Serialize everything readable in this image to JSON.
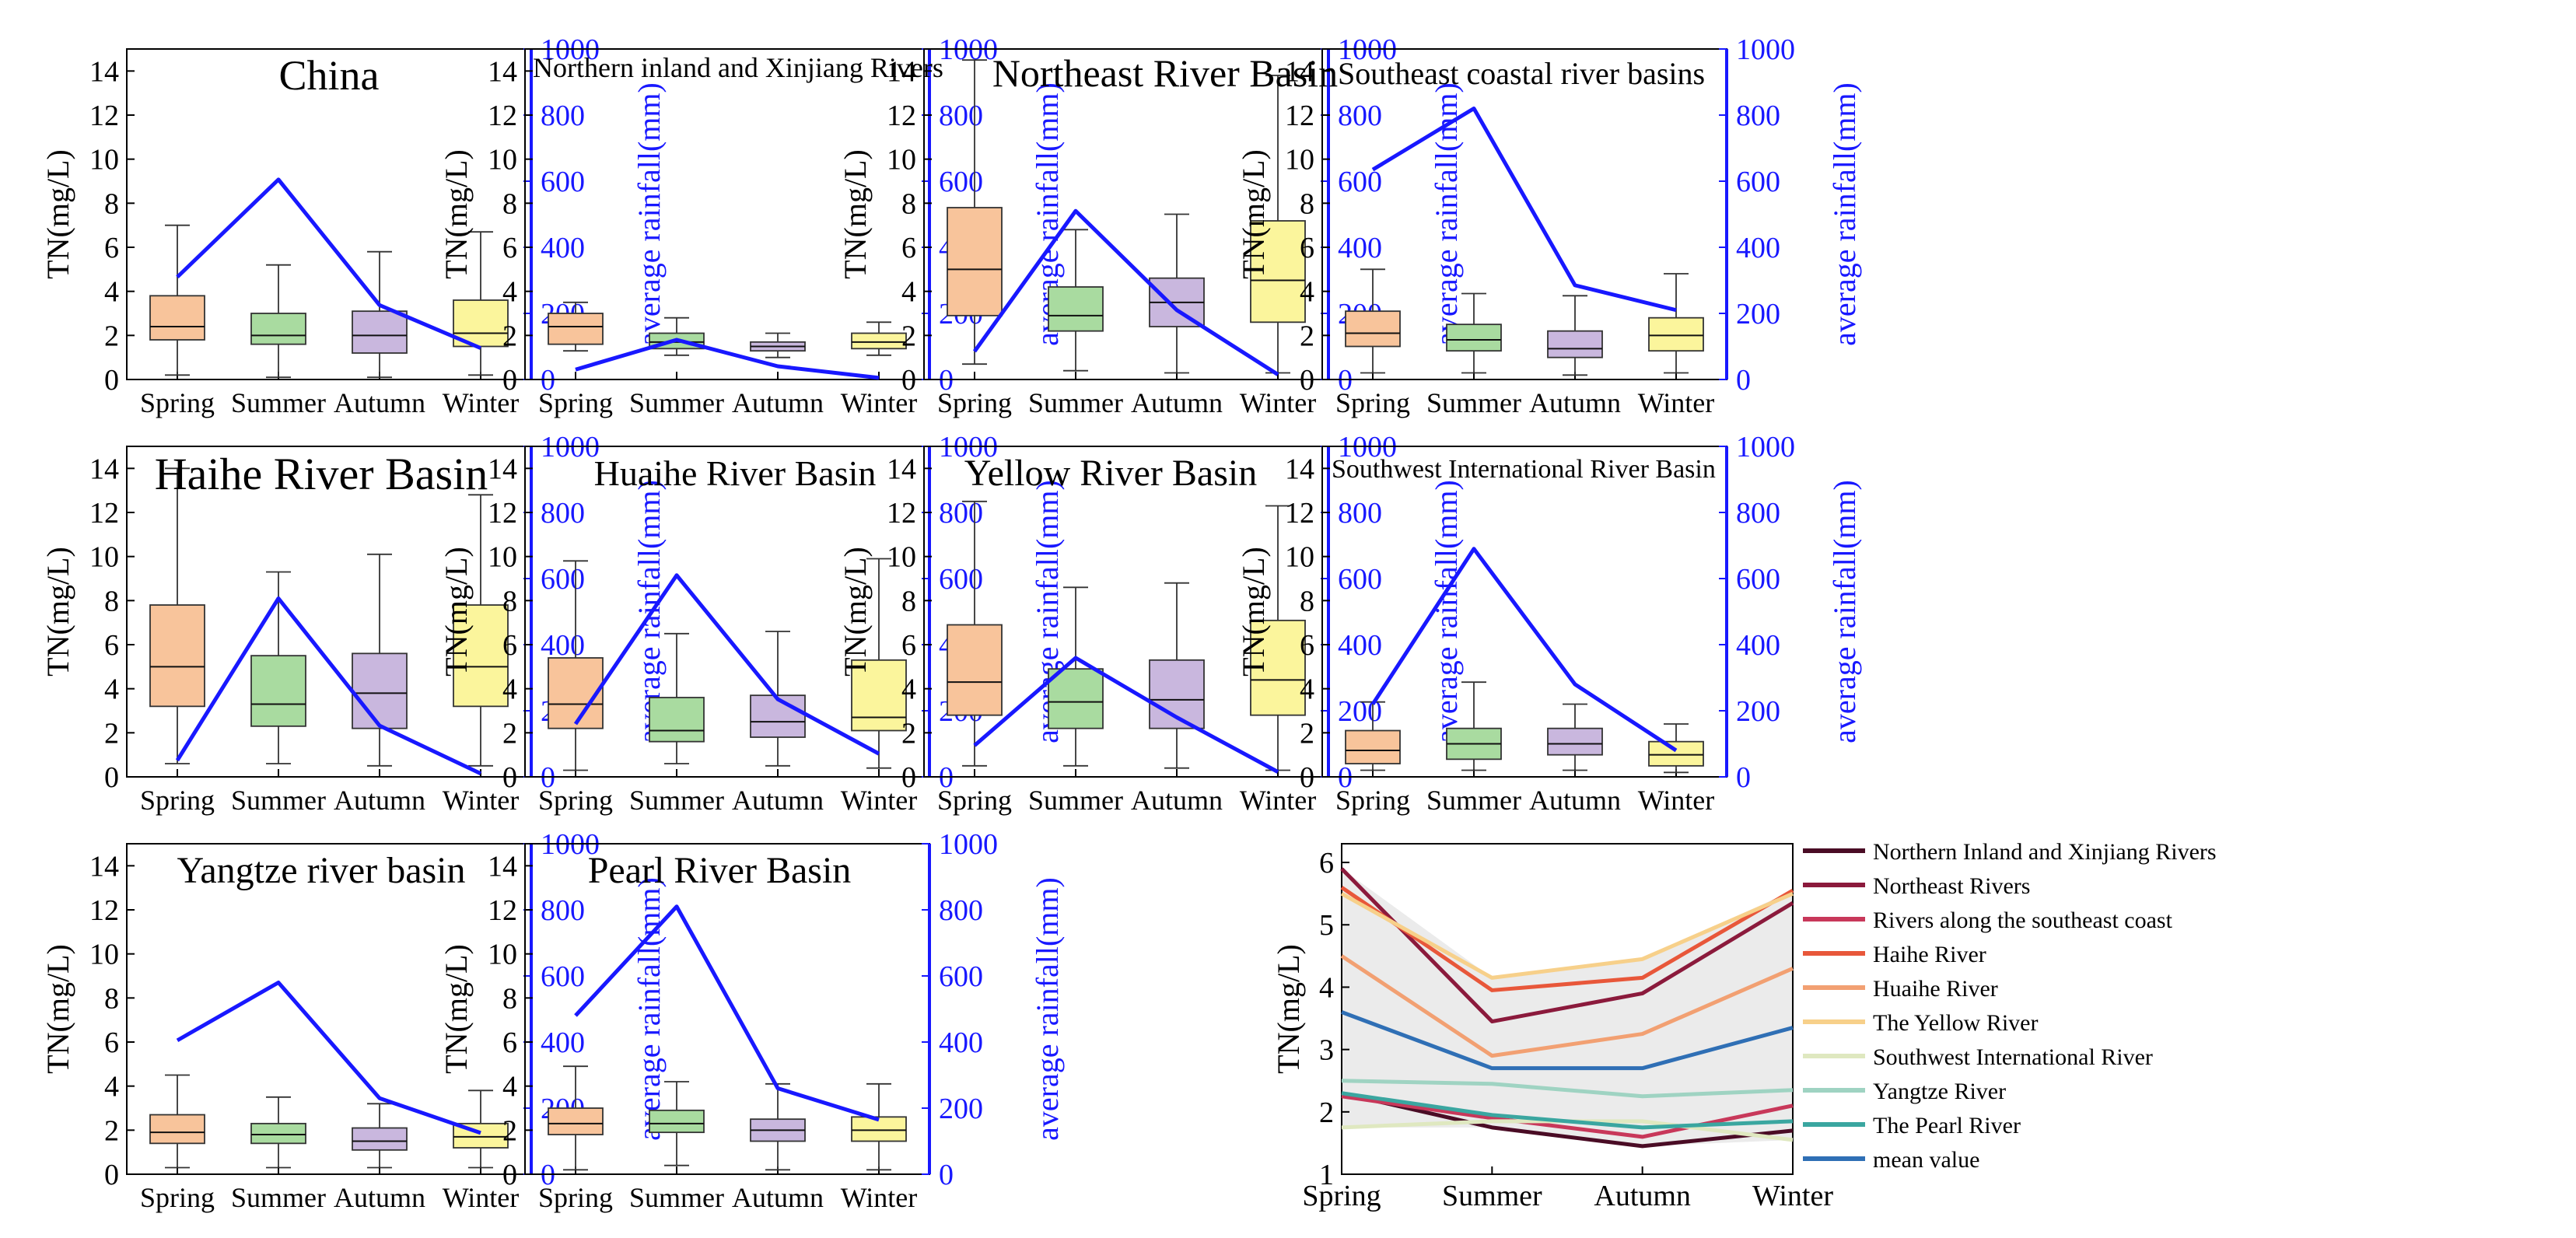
{
  "figure": {
    "seasons": [
      "Spring",
      "Summer",
      "Autumn",
      "Winter"
    ],
    "tn_axis_label": "TN(mg/L)",
    "rain_axis_label": "average rainfall(mm)",
    "colors": {
      "box_spring": "#f8c49b",
      "box_summer": "#a9dba0",
      "box_autumn": "#c9b7de",
      "box_winter": "#fbf59c",
      "rain_line": "#1818ff",
      "rain_axis": "#1818ff",
      "band_fill": "#e4e4e4"
    }
  },
  "chart_data": [
    {
      "type": "box+line",
      "title": "China",
      "categories": [
        "Spring",
        "Summer",
        "Autumn",
        "Winter"
      ],
      "y_left": {
        "label": "TN(mg/L)",
        "range": [
          0,
          15
        ],
        "ticks": [
          0,
          2,
          4,
          6,
          8,
          10,
          12,
          14
        ]
      },
      "y_right": {
        "label": "average rainfall(mm)",
        "range": [
          0,
          1000
        ],
        "ticks": [
          0,
          200,
          400,
          600,
          800,
          1000
        ]
      },
      "boxes": [
        {
          "season": "Spring",
          "min": 0.2,
          "q1": 1.8,
          "median": 2.4,
          "q3": 3.8,
          "max": 7.0
        },
        {
          "season": "Summer",
          "min": 0.1,
          "q1": 1.6,
          "median": 2.0,
          "q3": 3.0,
          "max": 5.2
        },
        {
          "season": "Autumn",
          "min": 0.1,
          "q1": 1.2,
          "median": 2.0,
          "q3": 3.1,
          "max": 5.8
        },
        {
          "season": "Winter",
          "min": 0.2,
          "q1": 1.5,
          "median": 2.1,
          "q3": 3.6,
          "max": 6.7
        }
      ],
      "rainfall": [
        310,
        605,
        225,
        95
      ]
    },
    {
      "type": "box+line",
      "title": "Northern inland and Xinjiang Rivers",
      "categories": [
        "Spring",
        "Summer",
        "Autumn",
        "Winter"
      ],
      "y_left": {
        "label": "TN(mg/L)",
        "range": [
          0,
          15
        ],
        "ticks": [
          0,
          2,
          4,
          6,
          8,
          10,
          12,
          14
        ]
      },
      "y_right": {
        "label": "average rainfall(mm)",
        "range": [
          0,
          1000
        ],
        "ticks": [
          0,
          200,
          400,
          600,
          800,
          1000
        ]
      },
      "boxes": [
        {
          "season": "Spring",
          "min": 1.3,
          "q1": 1.6,
          "median": 2.4,
          "q3": 3.0,
          "max": 3.5
        },
        {
          "season": "Summer",
          "min": 1.1,
          "q1": 1.4,
          "median": 1.7,
          "q3": 2.1,
          "max": 2.8
        },
        {
          "season": "Autumn",
          "min": 1.0,
          "q1": 1.3,
          "median": 1.5,
          "q3": 1.7,
          "max": 2.1
        },
        {
          "season": "Winter",
          "min": 1.1,
          "q1": 1.4,
          "median": 1.7,
          "q3": 2.1,
          "max": 2.6
        }
      ],
      "rainfall": [
        30,
        120,
        40,
        5
      ]
    },
    {
      "type": "box+line",
      "title": "Northeast River Basin",
      "categories": [
        "Spring",
        "Summer",
        "Autumn",
        "Winter"
      ],
      "y_left": {
        "label": "TN(mg/L)",
        "range": [
          0,
          15
        ],
        "ticks": [
          0,
          2,
          4,
          6,
          8,
          10,
          12,
          14
        ]
      },
      "y_right": {
        "label": "average rainfall(mm)",
        "range": [
          0,
          1000
        ],
        "ticks": [
          0,
          200,
          400,
          600,
          800,
          1000
        ]
      },
      "boxes": [
        {
          "season": "Spring",
          "min": 0.7,
          "q1": 2.9,
          "median": 5.0,
          "q3": 7.8,
          "max": 14.5
        },
        {
          "season": "Summer",
          "min": 0.4,
          "q1": 2.2,
          "median": 2.9,
          "q3": 4.2,
          "max": 6.8
        },
        {
          "season": "Autumn",
          "min": 0.3,
          "q1": 2.4,
          "median": 3.5,
          "q3": 4.6,
          "max": 7.5
        },
        {
          "season": "Winter",
          "min": 0.3,
          "q1": 2.6,
          "median": 4.5,
          "q3": 7.2,
          "max": 13.8
        }
      ],
      "rainfall": [
        85,
        510,
        210,
        15
      ]
    },
    {
      "type": "box+line",
      "title": "Southeast coastal river basins",
      "categories": [
        "Spring",
        "Summer",
        "Autumn",
        "Winter"
      ],
      "y_left": {
        "label": "TN(mg/L)",
        "range": [
          0,
          15
        ],
        "ticks": [
          0,
          2,
          4,
          6,
          8,
          10,
          12,
          14
        ]
      },
      "y_right": {
        "label": "average rainfall(mm)",
        "range": [
          0,
          1000
        ],
        "ticks": [
          0,
          200,
          400,
          600,
          800,
          1000
        ]
      },
      "boxes": [
        {
          "season": "Spring",
          "min": 0.3,
          "q1": 1.5,
          "median": 2.1,
          "q3": 3.1,
          "max": 5.0
        },
        {
          "season": "Summer",
          "min": 0.3,
          "q1": 1.3,
          "median": 1.8,
          "q3": 2.5,
          "max": 3.9
        },
        {
          "season": "Autumn",
          "min": 0.2,
          "q1": 1.0,
          "median": 1.4,
          "q3": 2.2,
          "max": 3.8
        },
        {
          "season": "Winter",
          "min": 0.3,
          "q1": 1.3,
          "median": 2.0,
          "q3": 2.8,
          "max": 4.8
        }
      ],
      "rainfall": [
        635,
        820,
        285,
        210
      ]
    },
    {
      "type": "box+line",
      "title": "Haihe River Basin",
      "categories": [
        "Spring",
        "Summer",
        "Autumn",
        "Winter"
      ],
      "y_left": {
        "label": "TN(mg/L)",
        "range": [
          0,
          15
        ],
        "ticks": [
          0,
          2,
          4,
          6,
          8,
          10,
          12,
          14
        ]
      },
      "y_right": {
        "label": "average rainfall(mm)",
        "range": [
          0,
          1000
        ],
        "ticks": [
          0,
          200,
          400,
          600,
          800,
          1000
        ]
      },
      "boxes": [
        {
          "season": "Spring",
          "min": 0.6,
          "q1": 3.2,
          "median": 5.0,
          "q3": 7.8,
          "max": 14.0
        },
        {
          "season": "Summer",
          "min": 0.6,
          "q1": 2.3,
          "median": 3.3,
          "q3": 5.5,
          "max": 9.3
        },
        {
          "season": "Autumn",
          "min": 0.5,
          "q1": 2.2,
          "median": 3.8,
          "q3": 5.6,
          "max": 10.1
        },
        {
          "season": "Winter",
          "min": 0.5,
          "q1": 3.2,
          "median": 5.0,
          "q3": 7.8,
          "max": 12.8
        }
      ],
      "rainfall": [
        50,
        540,
        155,
        10
      ]
    },
    {
      "type": "box+line",
      "title": "Huaihe River Basin",
      "categories": [
        "Spring",
        "Summer",
        "Autumn",
        "Winter"
      ],
      "y_left": {
        "label": "TN(mg/L)",
        "range": [
          0,
          15
        ],
        "ticks": [
          0,
          2,
          4,
          6,
          8,
          10,
          12,
          14
        ]
      },
      "y_right": {
        "label": "average rainfall(mm)",
        "range": [
          0,
          1000
        ],
        "ticks": [
          0,
          200,
          400,
          600,
          800,
          1000
        ]
      },
      "boxes": [
        {
          "season": "Spring",
          "min": 0.3,
          "q1": 2.2,
          "median": 3.3,
          "q3": 5.4,
          "max": 9.8
        },
        {
          "season": "Summer",
          "min": 0.6,
          "q1": 1.6,
          "median": 2.1,
          "q3": 3.6,
          "max": 6.5
        },
        {
          "season": "Autumn",
          "min": 0.5,
          "q1": 1.8,
          "median": 2.5,
          "q3": 3.7,
          "max": 6.6
        },
        {
          "season": "Winter",
          "min": 0.4,
          "q1": 2.1,
          "median": 2.7,
          "q3": 5.3,
          "max": 9.9
        }
      ],
      "rainfall": [
        160,
        610,
        235,
        70
      ]
    },
    {
      "type": "box+line",
      "title": "Yellow River Basin",
      "categories": [
        "Spring",
        "Summer",
        "Autumn",
        "Winter"
      ],
      "y_left": {
        "label": "TN(mg/L)",
        "range": [
          0,
          15
        ],
        "ticks": [
          0,
          2,
          4,
          6,
          8,
          10,
          12,
          14
        ]
      },
      "y_right": {
        "label": "average rainfall(mm)",
        "range": [
          0,
          1000
        ],
        "ticks": [
          0,
          200,
          400,
          600,
          800,
          1000
        ]
      },
      "boxes": [
        {
          "season": "Spring",
          "min": 0.5,
          "q1": 2.8,
          "median": 4.3,
          "q3": 6.9,
          "max": 12.5
        },
        {
          "season": "Summer",
          "min": 0.5,
          "q1": 2.2,
          "median": 3.4,
          "q3": 4.9,
          "max": 8.6
        },
        {
          "season": "Autumn",
          "min": 0.4,
          "q1": 2.2,
          "median": 3.5,
          "q3": 5.3,
          "max": 8.8
        },
        {
          "season": "Winter",
          "min": 0.3,
          "q1": 2.8,
          "median": 4.4,
          "q3": 7.1,
          "max": 12.3
        }
      ],
      "rainfall": [
        95,
        360,
        180,
        15
      ]
    },
    {
      "type": "box+line",
      "title": "Southwest International River Basin",
      "categories": [
        "Spring",
        "Summer",
        "Autumn",
        "Winter"
      ],
      "y_left": {
        "label": "TN(mg/L)",
        "range": [
          0,
          15
        ],
        "ticks": [
          0,
          2,
          4,
          6,
          8,
          10,
          12,
          14
        ]
      },
      "y_right": {
        "label": "average rainfall(mm)",
        "range": [
          0,
          1000
        ],
        "ticks": [
          0,
          200,
          400,
          600,
          800,
          1000
        ]
      },
      "boxes": [
        {
          "season": "Spring",
          "min": 0.3,
          "q1": 0.6,
          "median": 1.2,
          "q3": 2.1,
          "max": 3.4
        },
        {
          "season": "Summer",
          "min": 0.3,
          "q1": 0.8,
          "median": 1.5,
          "q3": 2.2,
          "max": 4.3
        },
        {
          "season": "Autumn",
          "min": 0.3,
          "q1": 1.0,
          "median": 1.5,
          "q3": 2.2,
          "max": 3.3
        },
        {
          "season": "Winter",
          "min": 0.2,
          "q1": 0.5,
          "median": 1.0,
          "q3": 1.6,
          "max": 2.4
        }
      ],
      "rainfall": [
        220,
        690,
        280,
        80
      ]
    },
    {
      "type": "box+line",
      "title": "Yangtze river basin",
      "categories": [
        "Spring",
        "Summer",
        "Autumn",
        "Winter"
      ],
      "y_left": {
        "label": "TN(mg/L)",
        "range": [
          0,
          15
        ],
        "ticks": [
          0,
          2,
          4,
          6,
          8,
          10,
          12,
          14
        ]
      },
      "y_right": {
        "label": "average rainfall(mm)",
        "range": [
          0,
          1000
        ],
        "ticks": [
          0,
          200,
          400,
          600,
          800,
          1000
        ]
      },
      "boxes": [
        {
          "season": "Spring",
          "min": 0.3,
          "q1": 1.4,
          "median": 1.9,
          "q3": 2.7,
          "max": 4.5
        },
        {
          "season": "Summer",
          "min": 0.3,
          "q1": 1.4,
          "median": 1.8,
          "q3": 2.3,
          "max": 3.5
        },
        {
          "season": "Autumn",
          "min": 0.3,
          "q1": 1.1,
          "median": 1.5,
          "q3": 2.1,
          "max": 3.2
        },
        {
          "season": "Winter",
          "min": 0.3,
          "q1": 1.2,
          "median": 1.7,
          "q3": 2.3,
          "max": 3.8
        }
      ],
      "rainfall": [
        405,
        580,
        230,
        125
      ]
    },
    {
      "type": "box+line",
      "title": "Pearl River Basin",
      "categories": [
        "Spring",
        "Summer",
        "Autumn",
        "Winter"
      ],
      "y_left": {
        "label": "TN(mg/L)",
        "range": [
          0,
          15
        ],
        "ticks": [
          0,
          2,
          4,
          6,
          8,
          10,
          12,
          14
        ]
      },
      "y_right": {
        "label": "average rainfall(mm)",
        "range": [
          0,
          1000
        ],
        "ticks": [
          0,
          200,
          400,
          600,
          800,
          1000
        ]
      },
      "boxes": [
        {
          "season": "Spring",
          "min": 0.2,
          "q1": 1.8,
          "median": 2.3,
          "q3": 3.0,
          "max": 4.9
        },
        {
          "season": "Summer",
          "min": 0.4,
          "q1": 1.9,
          "median": 2.3,
          "q3": 2.9,
          "max": 4.2
        },
        {
          "season": "Autumn",
          "min": 0.2,
          "q1": 1.5,
          "median": 2.0,
          "q3": 2.5,
          "max": 4.1
        },
        {
          "season": "Winter",
          "min": 0.2,
          "q1": 1.5,
          "median": 2.0,
          "q3": 2.6,
          "max": 4.1
        }
      ],
      "rainfall": [
        480,
        810,
        260,
        165
      ]
    },
    {
      "type": "line",
      "x": [
        "Spring",
        "Summer",
        "Autumn",
        "Winter"
      ],
      "ylabel": "TN(mg/L)",
      "ylim": [
        1,
        6.3
      ],
      "yticks": [
        1,
        2,
        3,
        4,
        5,
        6
      ],
      "grid": false,
      "legend_position": "right",
      "band": {
        "lower": [
          1.75,
          1.75,
          1.45,
          1.55
        ],
        "upper": [
          5.9,
          4.15,
          4.45,
          5.55
        ]
      },
      "series": [
        {
          "name": "Northern Inland and Xinjiang Rivers",
          "color": "#4a0c25",
          "values": [
            2.3,
            1.75,
            1.45,
            1.7
          ]
        },
        {
          "name": "Northeast Rivers",
          "color": "#8b1a3c",
          "values": [
            5.9,
            3.45,
            3.9,
            5.35
          ]
        },
        {
          "name": "Rivers along the southeast coast",
          "color": "#c8385a",
          "values": [
            2.25,
            1.9,
            1.6,
            2.1
          ]
        },
        {
          "name": "Haihe River",
          "color": "#e8573a",
          "values": [
            5.6,
            3.95,
            4.15,
            5.55
          ]
        },
        {
          "name": "Huaihe River",
          "color": "#f2a072",
          "values": [
            4.5,
            2.9,
            3.25,
            4.3
          ]
        },
        {
          "name": "The Yellow River",
          "color": "#f7d08a",
          "values": [
            5.5,
            4.15,
            4.45,
            5.5
          ]
        },
        {
          "name": "Southwest International River",
          "color": "#dfe8c0",
          "values": [
            1.75,
            1.85,
            1.85,
            1.55
          ]
        },
        {
          "name": "Yangtze River",
          "color": "#9fd3c2",
          "values": [
            2.5,
            2.45,
            2.25,
            2.35
          ]
        },
        {
          "name": "The Pearl River",
          "color": "#3aa6a0",
          "values": [
            2.3,
            1.95,
            1.75,
            1.85
          ]
        },
        {
          "name": "mean value",
          "color": "#2f6fb5",
          "values": [
            3.6,
            2.7,
            2.7,
            3.35
          ]
        }
      ]
    }
  ]
}
